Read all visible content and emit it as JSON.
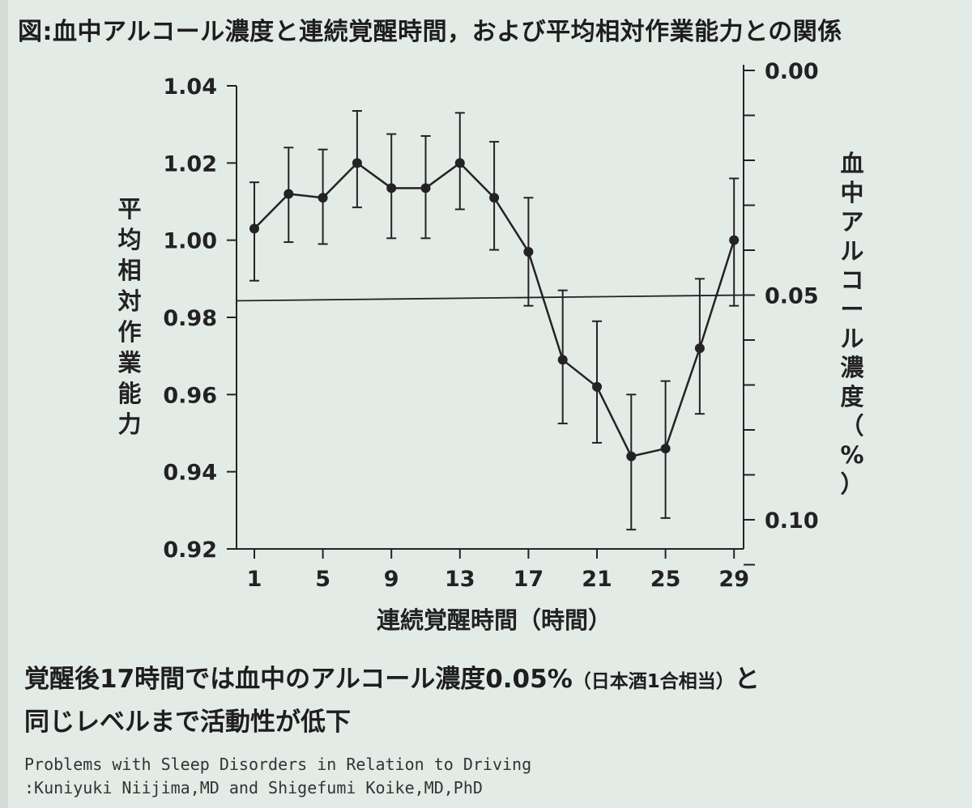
{
  "figure_title": "図:血中アルコール濃度と連続覚醒時間，および平均相対作業能力との関係",
  "chart_data": {
    "type": "line",
    "x": [
      1,
      3,
      5,
      7,
      9,
      11,
      13,
      15,
      17,
      19,
      21,
      23,
      25,
      27,
      29
    ],
    "values": [
      1.003,
      1.012,
      1.011,
      1.02,
      1.0135,
      1.0135,
      1.02,
      1.011,
      0.997,
      0.969,
      0.962,
      0.944,
      0.946,
      0.972,
      1.0
    ],
    "error_upper": [
      1.015,
      1.024,
      1.0235,
      1.0335,
      1.0275,
      1.027,
      1.033,
      1.0255,
      1.011,
      0.987,
      0.979,
      0.96,
      0.9635,
      0.99,
      1.016
    ],
    "error_lower": [
      0.9895,
      0.9995,
      0.999,
      1.0085,
      1.0005,
      1.0005,
      1.008,
      0.9975,
      0.983,
      0.9525,
      0.9475,
      0.925,
      0.928,
      0.955,
      0.983
    ],
    "x_ticks": [
      1,
      5,
      9,
      13,
      17,
      21,
      25,
      29
    ],
    "xlim": [
      0,
      30
    ],
    "xlabel": "連続覚醒時間（時間）",
    "y_left": {
      "label": "平均相対作業能力",
      "ticks": [
        0.92,
        0.94,
        0.96,
        0.98,
        1.0,
        1.02,
        1.04
      ],
      "tick_labels": [
        "0.92",
        "0.94",
        "0.96",
        "0.98",
        "1.00",
        "1.02",
        "1.04"
      ],
      "ylim": [
        0.92,
        1.04
      ]
    },
    "y_right": {
      "label": "血中アルコール濃度（%）",
      "ticks": [
        0.0,
        0.01,
        0.02,
        0.03,
        0.04,
        0.05,
        0.06,
        0.07,
        0.08,
        0.09,
        0.1,
        0.11
      ],
      "tick_labels": [
        "0.00",
        "0.05",
        "0.10"
      ],
      "labeled_ticks": [
        0.0,
        0.05,
        0.1
      ],
      "ylim": [
        0.0,
        0.107
      ],
      "inverted": true
    },
    "reference_line": {
      "right_axis_value": 0.05
    },
    "grid": false,
    "legend": "none"
  },
  "caption": {
    "line1_main": "覚醒後17時間では血中のアルコール濃度0.05%",
    "line1_small": "（日本酒1合相当）",
    "line1_end": "と",
    "line2": "同じレベルまで活動性が低下"
  },
  "source": {
    "line1": "Problems with Sleep Disorders in Relation to Driving",
    "line2": ":Kuniyuki Niijima,MD and Shigefumi Koike,MD,PhD"
  },
  "colors": {
    "background": "#e3ebe6",
    "ink": "#232323"
  }
}
